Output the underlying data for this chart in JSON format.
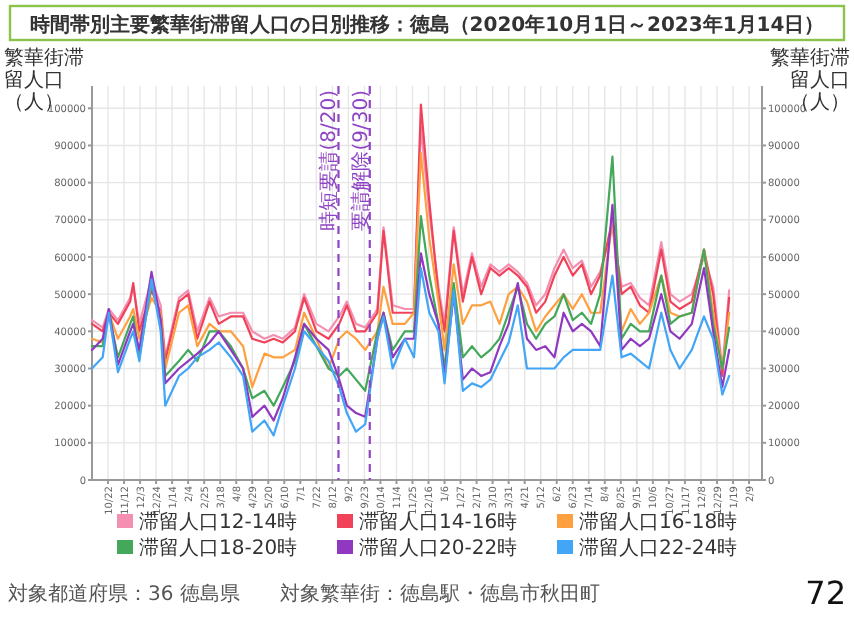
{
  "chart_data": {
    "type": "line",
    "title": "時間帯別主要繁華街滞留人口の日別推移：徳島（2020年10月1日～2023年1月14日）",
    "ylabel": "繁華街滞留人口（人）",
    "y2label": "繁華街滞留人口（人）",
    "x": [
      "2020-10-01",
      "2020-10-15",
      "2020-10-23",
      "2020-11-04",
      "2020-11-20",
      "2020-11-24",
      "2020-12-02",
      "2020-12-18",
      "2020-12-30",
      "2021-01-05",
      "2021-01-23",
      "2021-02-04",
      "2021-02-16",
      "2021-03-04",
      "2021-03-16",
      "2021-04-01",
      "2021-04-17",
      "2021-04-29",
      "2021-05-15",
      "2021-05-27",
      "2021-06-08",
      "2021-06-24",
      "2021-07-06",
      "2021-07-22",
      "2021-08-07",
      "2021-08-21",
      "2021-08-31",
      "2021-09-12",
      "2021-09-24",
      "2021-10-10",
      "2021-10-18",
      "2021-10-30",
      "2021-11-15",
      "2021-11-27",
      "2021-12-06",
      "2021-12-17",
      "2021-12-29",
      "2022-01-06",
      "2022-01-18",
      "2022-01-30",
      "2022-02-11",
      "2022-02-23",
      "2022-03-07",
      "2022-03-19",
      "2022-03-31",
      "2022-04-12",
      "2022-04-24",
      "2022-05-06",
      "2022-05-18",
      "2022-05-30",
      "2022-06-11",
      "2022-06-23",
      "2022-07-05",
      "2022-07-17",
      "2022-07-29",
      "2022-08-14",
      "2022-08-26",
      "2022-09-07",
      "2022-09-19",
      "2022-10-01",
      "2022-10-17",
      "2022-10-29",
      "2022-11-10",
      "2022-11-26",
      "2022-12-12",
      "2022-12-24",
      "2023-01-05",
      "2023-01-14"
    ],
    "series": [
      {
        "name": "滞留人口12-14時",
        "color": "#f48fb1",
        "values": [
          43000,
          41000,
          46000,
          43000,
          49000,
          52000,
          42000,
          54000,
          47000,
          33000,
          49000,
          51000,
          40000,
          49000,
          44000,
          45000,
          45000,
          40000,
          38000,
          39000,
          38000,
          41000,
          50000,
          42000,
          40000,
          44000,
          48000,
          42000,
          41000,
          46000,
          68000,
          47000,
          46000,
          46000,
          95000,
          72000,
          52000,
          42000,
          68000,
          50000,
          61000,
          52000,
          58000,
          56000,
          58000,
          56000,
          53000,
          47000,
          50000,
          57000,
          62000,
          57000,
          59000,
          52000,
          56000,
          68000,
          52000,
          53000,
          49000,
          47000,
          64000,
          50000,
          48000,
          50000,
          60000,
          52000,
          30000,
          51000
        ]
      },
      {
        "name": "滞留人口14-16時",
        "color": "#f0435a",
        "values": [
          42000,
          40000,
          45000,
          42000,
          48000,
          53000,
          40000,
          51000,
          45000,
          32000,
          48000,
          50000,
          38000,
          48000,
          42000,
          44000,
          44000,
          38000,
          37000,
          38000,
          37000,
          40000,
          49000,
          40000,
          38000,
          42000,
          47000,
          40000,
          40000,
          45000,
          67000,
          45000,
          45000,
          45000,
          101000,
          75000,
          50000,
          40000,
          67000,
          48000,
          60000,
          50000,
          57000,
          55000,
          57000,
          55000,
          52000,
          45000,
          48000,
          55000,
          60000,
          55000,
          58000,
          50000,
          55000,
          70000,
          50000,
          52000,
          47000,
          45000,
          62000,
          48000,
          46000,
          48000,
          62000,
          50000,
          28000,
          49000
        ]
      },
      {
        "name": "滞留人口16-18時",
        "color": "#ffa040",
        "values": [
          38000,
          37000,
          45000,
          38000,
          44000,
          46000,
          38000,
          49000,
          45000,
          30000,
          45000,
          47000,
          36000,
          42000,
          40000,
          40000,
          36000,
          25000,
          34000,
          33000,
          33000,
          35000,
          45000,
          38000,
          30000,
          38000,
          40000,
          38000,
          35000,
          40000,
          52000,
          42000,
          42000,
          45000,
          88000,
          65000,
          48000,
          35000,
          58000,
          42000,
          47000,
          47000,
          48000,
          42000,
          50000,
          52000,
          48000,
          40000,
          44000,
          47000,
          50000,
          46000,
          50000,
          45000,
          45000,
          70000,
          40000,
          46000,
          42000,
          45000,
          55000,
          45000,
          44000,
          45000,
          62000,
          45000,
          30000,
          45000
        ]
      },
      {
        "name": "滞留人口18-20時",
        "color": "#43a85a",
        "values": [
          36000,
          36000,
          45000,
          33000,
          42000,
          44000,
          33000,
          53000,
          43000,
          28000,
          32000,
          35000,
          32000,
          40000,
          40000,
          36000,
          30000,
          22000,
          24000,
          20000,
          25000,
          32000,
          42000,
          36000,
          30000,
          28000,
          30000,
          27000,
          24000,
          40000,
          45000,
          35000,
          40000,
          40000,
          71000,
          55000,
          42000,
          30000,
          53000,
          33000,
          36000,
          33000,
          35000,
          38000,
          45000,
          52000,
          42000,
          38000,
          42000,
          44000,
          50000,
          43000,
          45000,
          42000,
          50000,
          87000,
          38000,
          42000,
          40000,
          40000,
          55000,
          42000,
          44000,
          45000,
          62000,
          42000,
          30000,
          41000
        ]
      },
      {
        "name": "滞留人口20-22時",
        "color": "#9039c0",
        "values": [
          35000,
          38000,
          46000,
          31000,
          40000,
          42000,
          35000,
          56000,
          43000,
          26000,
          30000,
          32000,
          34000,
          37000,
          40000,
          35000,
          30000,
          17000,
          20000,
          16000,
          22000,
          33000,
          42000,
          38000,
          35000,
          27000,
          20000,
          18000,
          17000,
          38000,
          45000,
          33000,
          38000,
          38000,
          61000,
          50000,
          42000,
          28000,
          50000,
          27000,
          30000,
          28000,
          29000,
          36000,
          42000,
          53000,
          38000,
          35000,
          36000,
          33000,
          45000,
          40000,
          42000,
          40000,
          36000,
          74000,
          35000,
          38000,
          36000,
          38000,
          50000,
          40000,
          38000,
          42000,
          57000,
          40000,
          25000,
          35000
        ]
      },
      {
        "name": "滞留人口22-24時",
        "color": "#42a5f5",
        "values": [
          30000,
          33000,
          45000,
          29000,
          38000,
          40000,
          32000,
          54000,
          40000,
          20000,
          28000,
          30000,
          33000,
          35000,
          37000,
          33000,
          28000,
          13000,
          16000,
          12000,
          20000,
          30000,
          40000,
          36000,
          32000,
          25000,
          18000,
          13000,
          15000,
          38000,
          44000,
          30000,
          38000,
          33000,
          57000,
          45000,
          40000,
          26000,
          51000,
          24000,
          26000,
          25000,
          27000,
          32000,
          37000,
          47000,
          30000,
          30000,
          30000,
          30000,
          33000,
          35000,
          35000,
          35000,
          35000,
          55000,
          33000,
          34000,
          32000,
          30000,
          45000,
          35000,
          30000,
          35000,
          44000,
          38000,
          23000,
          28000
        ]
      }
    ],
    "xlim": [
      "2020-10-01",
      "2023-02-26"
    ],
    "xticks": [
      {
        "value": "2020-10-22",
        "label": "10/22"
      },
      {
        "value": "2020-11-12",
        "label": "11/12"
      },
      {
        "value": "2020-12-03",
        "label": "12/3"
      },
      {
        "value": "2020-12-24",
        "label": "12/24"
      },
      {
        "value": "2021-01-14",
        "label": "1/14"
      },
      {
        "value": "2021-02-04",
        "label": "2/4"
      },
      {
        "value": "2021-02-25",
        "label": "2/25"
      },
      {
        "value": "2021-03-18",
        "label": "3/18"
      },
      {
        "value": "2021-04-08",
        "label": "4/8"
      },
      {
        "value": "2021-04-29",
        "label": "4/29"
      },
      {
        "value": "2021-05-20",
        "label": "5/20"
      },
      {
        "value": "2021-06-10",
        "label": "6/10"
      },
      {
        "value": "2021-07-01",
        "label": "7/1"
      },
      {
        "value": "2021-07-22",
        "label": "7/22"
      },
      {
        "value": "2021-08-12",
        "label": "8/12"
      },
      {
        "value": "2021-09-02",
        "label": "9/2"
      },
      {
        "value": "2021-09-23",
        "label": "9/23"
      },
      {
        "value": "2021-10-14",
        "label": "10/14"
      },
      {
        "value": "2021-11-04",
        "label": "11/4"
      },
      {
        "value": "2021-11-25",
        "label": "11/25"
      },
      {
        "value": "2021-12-16",
        "label": "12/16"
      },
      {
        "value": "2022-01-06",
        "label": "1/6"
      },
      {
        "value": "2022-01-27",
        "label": "1/27"
      },
      {
        "value": "2022-02-17",
        "label": "2/17"
      },
      {
        "value": "2022-03-10",
        "label": "3/10"
      },
      {
        "value": "2022-03-31",
        "label": "3/31"
      },
      {
        "value": "2022-04-21",
        "label": "4/21"
      },
      {
        "value": "2022-05-12",
        "label": "5/12"
      },
      {
        "value": "2022-06-02",
        "label": "6/2"
      },
      {
        "value": "2022-06-23",
        "label": "6/23"
      },
      {
        "value": "2022-07-14",
        "label": "7/14"
      },
      {
        "value": "2022-08-04",
        "label": "8/4"
      },
      {
        "value": "2022-08-25",
        "label": "8/25"
      },
      {
        "value": "2022-09-15",
        "label": "9/15"
      },
      {
        "value": "2022-10-06",
        "label": "10/6"
      },
      {
        "value": "2022-10-27",
        "label": "10/27"
      },
      {
        "value": "2022-11-17",
        "label": "11/17"
      },
      {
        "value": "2022-12-08",
        "label": "12/8"
      },
      {
        "value": "2022-12-29",
        "label": "12/29"
      },
      {
        "value": "2023-01-19",
        "label": "1/19"
      },
      {
        "value": "2023-02-09",
        "label": "2/9"
      }
    ],
    "ylim": [
      0,
      106000
    ],
    "yticks": [
      0,
      10000,
      20000,
      30000,
      40000,
      50000,
      60000,
      70000,
      80000,
      90000,
      100000
    ],
    "y2lim": [
      0,
      106000
    ],
    "y2ticks": [
      0,
      10000,
      20000,
      30000,
      40000,
      50000,
      60000,
      70000,
      80000,
      90000,
      100000
    ],
    "ref_lines": [
      {
        "axis": "x",
        "value": "2021-08-20",
        "label": "時短要請(8/20)",
        "color": "#8e44c4",
        "line_style": "dashed"
      },
      {
        "axis": "x",
        "value": "2021-09-30",
        "label": "要請解除(9/30)",
        "color": "#8e44c4",
        "line_style": "dashed"
      }
    ],
    "annotations": [
      "対象都道府県：36 徳島県",
      "対象繁華街：徳島駅・徳島市秋田町",
      "72"
    ],
    "grid": true,
    "legend": "bottom",
    "line_style": "solid"
  }
}
